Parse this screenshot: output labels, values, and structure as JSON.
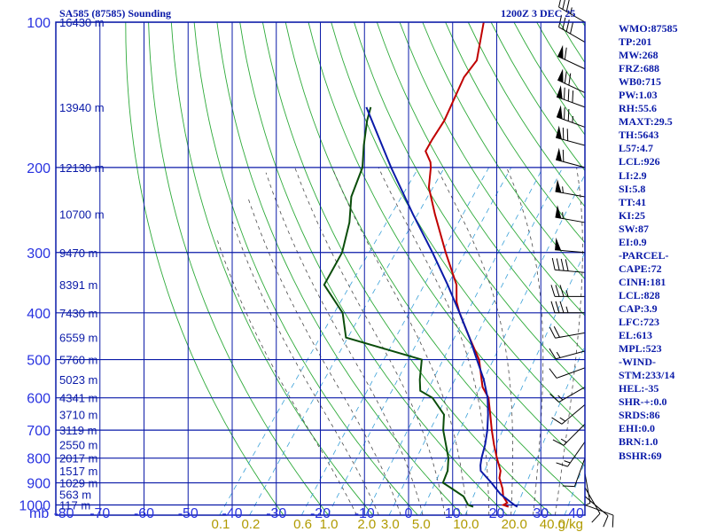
{
  "chart_data": {
    "type": "skew-t log-p sounding",
    "title": "SA585 (87585) Sounding",
    "timestamp": "1200Z  3 DEC 25",
    "pressure_axis_unit": "mb",
    "pressure_ticks": [
      100,
      200,
      300,
      400,
      500,
      600,
      700,
      800,
      900,
      1000
    ],
    "temperature_ticks": [
      -80,
      -70,
      -60,
      -50,
      -40,
      -30,
      -20,
      -10,
      0,
      10,
      20,
      30,
      40
    ],
    "mixing_ratio_unit": "g/kg",
    "mixing_ratio_labels": [
      "0.1",
      "0.2",
      "0.6",
      "1.0",
      "2.0",
      "3.0",
      "5.0",
      "10.0",
      "20.0",
      "40.0"
    ],
    "mixing_ratio_values": [
      0.1,
      0.2,
      0.6,
      1.0,
      2.0,
      3.0,
      5.0,
      10.0,
      20.0,
      40.0
    ],
    "height_labels": [
      {
        "p": 100,
        "label": "16430 m"
      },
      {
        "p": 150,
        "label": "13940 m"
      },
      {
        "p": 200,
        "label": "12130 m"
      },
      {
        "p": 250,
        "label": "10700 m"
      },
      {
        "p": 300,
        "label": "9470 m"
      },
      {
        "p": 350,
        "label": "8391 m"
      },
      {
        "p": 400,
        "label": "7430 m"
      },
      {
        "p": 450,
        "label": "6559 m"
      },
      {
        "p": 500,
        "label": "5760 m"
      },
      {
        "p": 550,
        "label": "5023 m"
      },
      {
        "p": 600,
        "label": "4341 m"
      },
      {
        "p": 650,
        "label": "3710 m"
      },
      {
        "p": 700,
        "label": "3119 m"
      },
      {
        "p": 750,
        "label": "2550 m"
      },
      {
        "p": 800,
        "label": "2017 m"
      },
      {
        "p": 850,
        "label": "1517 m"
      },
      {
        "p": 900,
        "label": "1029 m"
      },
      {
        "p": 950,
        "label": "563 m"
      },
      {
        "p": 1000,
        "label": "117 m"
      }
    ],
    "series": [
      {
        "name": "temperature",
        "color": "#c00000",
        "points": [
          {
            "p": 1009,
            "t": 23.0
          },
          {
            "p": 1000,
            "t": 21.5
          },
          {
            "p": 990,
            "t": 22.0
          },
          {
            "p": 960,
            "t": 20.0
          },
          {
            "p": 925,
            "t": 18.5
          },
          {
            "p": 880,
            "t": 16.0
          },
          {
            "p": 850,
            "t": 15.0
          },
          {
            "p": 800,
            "t": 12.0
          },
          {
            "p": 750,
            "t": 9.0
          },
          {
            "p": 700,
            "t": 6.0
          },
          {
            "p": 650,
            "t": 3.0
          },
          {
            "p": 600,
            "t": -0.3
          },
          {
            "p": 570,
            "t": -3.5
          },
          {
            "p": 550,
            "t": -5.0
          },
          {
            "p": 500,
            "t": -9.0
          },
          {
            "p": 450,
            "t": -15.0
          },
          {
            "p": 400,
            "t": -21.5
          },
          {
            "p": 380,
            "t": -24.0
          },
          {
            "p": 350,
            "t": -27.0
          },
          {
            "p": 300,
            "t": -35.0
          },
          {
            "p": 250,
            "t": -44.0
          },
          {
            "p": 220,
            "t": -50.0
          },
          {
            "p": 200,
            "t": -53.0
          },
          {
            "p": 195,
            "t": -54.0
          },
          {
            "p": 185,
            "t": -57.0
          },
          {
            "p": 175,
            "t": -57.5
          },
          {
            "p": 160,
            "t": -58.0
          },
          {
            "p": 130,
            "t": -61.0
          },
          {
            "p": 120,
            "t": -61.0
          },
          {
            "p": 100,
            "t": -66.0
          }
        ]
      },
      {
        "name": "dewpoint",
        "color": "#0a4d0a",
        "points": [
          {
            "p": 1009,
            "t": 15.0
          },
          {
            "p": 1000,
            "t": 13.5
          },
          {
            "p": 960,
            "t": 11.0
          },
          {
            "p": 925,
            "t": 7.0
          },
          {
            "p": 900,
            "t": 4.0
          },
          {
            "p": 850,
            "t": 3.0
          },
          {
            "p": 800,
            "t": 1.0
          },
          {
            "p": 700,
            "t": -5.0
          },
          {
            "p": 650,
            "t": -7.5
          },
          {
            "p": 600,
            "t": -13.0
          },
          {
            "p": 580,
            "t": -17.0
          },
          {
            "p": 550,
            "t": -19.0
          },
          {
            "p": 500,
            "t": -22.0
          },
          {
            "p": 450,
            "t": -43.0
          },
          {
            "p": 400,
            "t": -48.0
          },
          {
            "p": 350,
            "t": -57.0
          },
          {
            "p": 300,
            "t": -58.5
          },
          {
            "p": 260,
            "t": -62.0
          },
          {
            "p": 230,
            "t": -66.0
          },
          {
            "p": 200,
            "t": -68.5
          },
          {
            "p": 180,
            "t": -72.0
          },
          {
            "p": 160,
            "t": -75.5
          },
          {
            "p": 150,
            "t": -77.0
          }
        ]
      },
      {
        "name": "parcel",
        "color": "#0a1aa8",
        "points": [
          {
            "p": 1009,
            "t": 25.0
          },
          {
            "p": 1000,
            "t": 24.0
          },
          {
            "p": 950,
            "t": 19.0
          },
          {
            "p": 900,
            "t": 15.0
          },
          {
            "p": 850,
            "t": 10.5
          },
          {
            "p": 828,
            "t": 9.5
          },
          {
            "p": 800,
            "t": 8.5
          },
          {
            "p": 750,
            "t": 7.0
          },
          {
            "p": 700,
            "t": 5.0
          },
          {
            "p": 650,
            "t": 2.5
          },
          {
            "p": 600,
            "t": -0.5
          },
          {
            "p": 550,
            "t": -4.5
          },
          {
            "p": 500,
            "t": -9.5
          },
          {
            "p": 450,
            "t": -15.0
          },
          {
            "p": 400,
            "t": -21.5
          },
          {
            "p": 350,
            "t": -29.0
          },
          {
            "p": 300,
            "t": -38.0
          },
          {
            "p": 250,
            "t": -49.0
          },
          {
            "p": 200,
            "t": -62.0
          },
          {
            "p": 150,
            "t": -78.0
          }
        ]
      }
    ],
    "wind_barbs": [
      {
        "p": 100,
        "dir": 300,
        "spd": 35
      },
      {
        "p": 110,
        "dir": 300,
        "spd": 40
      },
      {
        "p": 125,
        "dir": 295,
        "spd": 60
      },
      {
        "p": 140,
        "dir": 295,
        "spd": 70
      },
      {
        "p": 150,
        "dir": 290,
        "spd": 80
      },
      {
        "p": 165,
        "dir": 290,
        "spd": 75
      },
      {
        "p": 180,
        "dir": 285,
        "spd": 70
      },
      {
        "p": 200,
        "dir": 285,
        "spd": 60
      },
      {
        "p": 230,
        "dir": 280,
        "spd": 55
      },
      {
        "p": 260,
        "dir": 280,
        "spd": 55
      },
      {
        "p": 300,
        "dir": 275,
        "spd": 50
      },
      {
        "p": 330,
        "dir": 275,
        "spd": 40
      },
      {
        "p": 370,
        "dir": 270,
        "spd": 35
      },
      {
        "p": 400,
        "dir": 270,
        "spd": 35
      },
      {
        "p": 440,
        "dir": 260,
        "spd": 20
      },
      {
        "p": 480,
        "dir": 255,
        "spd": 15
      },
      {
        "p": 520,
        "dir": 250,
        "spd": 10
      },
      {
        "p": 570,
        "dir": 240,
        "spd": 15
      },
      {
        "p": 620,
        "dir": 230,
        "spd": 15
      },
      {
        "p": 680,
        "dir": 225,
        "spd": 15
      },
      {
        "p": 740,
        "dir": 215,
        "spd": 15
      },
      {
        "p": 800,
        "dir": 200,
        "spd": 10
      },
      {
        "p": 860,
        "dir": 170,
        "spd": 5
      },
      {
        "p": 920,
        "dir": 150,
        "spd": 10
      },
      {
        "p": 960,
        "dir": 130,
        "spd": 10
      },
      {
        "p": 1000,
        "dir": 110,
        "spd": 10
      }
    ],
    "grid": true
  },
  "indices": [
    "WMO:87585",
    "TP:201",
    "MW:268",
    "FRZ:688",
    "WB0:715",
    "PW:1.03",
    "RH:55.6",
    "MAXT:29.5",
    "TH:5643",
    "L57:4.7",
    "LCL:926",
    "LI:2.9",
    "SI:5.8",
    "TT:41",
    "KI:25",
    "SW:87",
    "EI:0.9",
    "-PARCEL-",
    "CAPE:72",
    "CINH:181",
    "LCL:828",
    "CAP:3.9",
    "LFC:723",
    "EL:613",
    "MPL:523",
    "-WIND-",
    "STM:233/14",
    "HEL:-35",
    "SHR-+:0.0",
    "SRDS:86",
    "EHI:0.0",
    "BRN:1.0",
    "BSHR:69"
  ],
  "colors": {
    "isobar": "#0a1aa8",
    "isotherm": "#0a1aa8",
    "axis_label": "#2832e0",
    "dry_adiabat": "#2eaa3a",
    "moist_adiabat": "#4a4a4a",
    "mixing_ratio": "#3aa0d8",
    "mixing_ratio_label": "#b09a00",
    "height_label": "#0a1aa8",
    "barb": "#000000"
  }
}
